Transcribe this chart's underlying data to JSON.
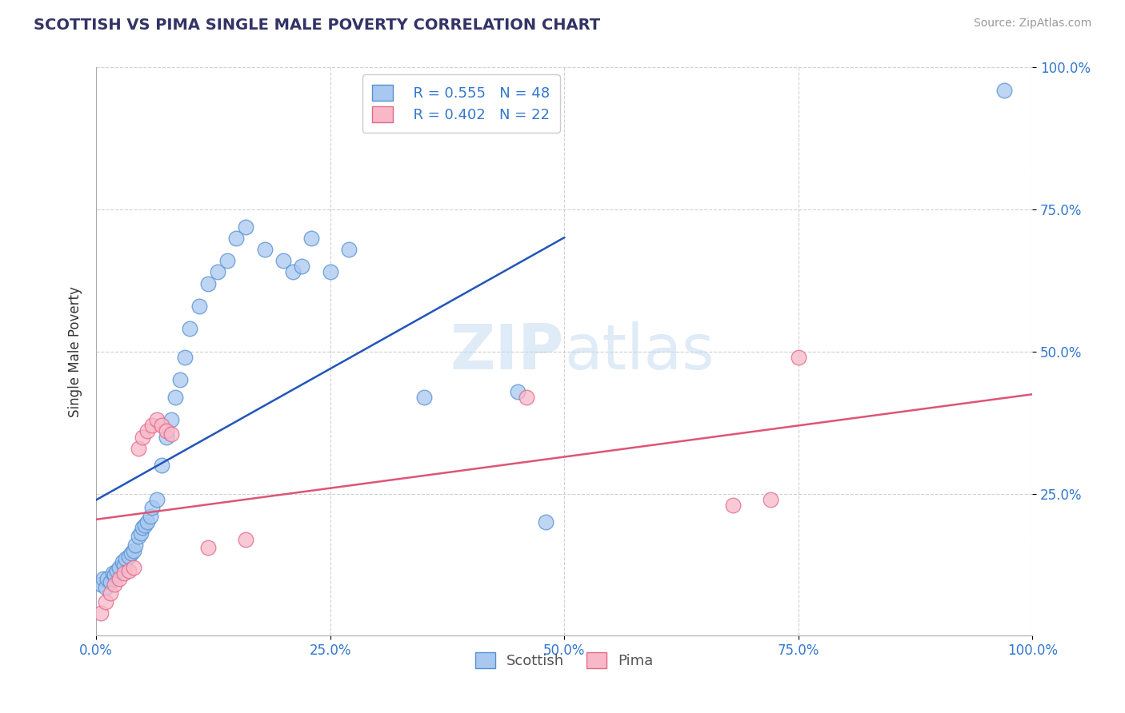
{
  "title": "SCOTTISH VS PIMA SINGLE MALE POVERTY CORRELATION CHART",
  "source": "Source: ZipAtlas.com",
  "ylabel": "Single Male Poverty",
  "watermark": "ZIPatlas",
  "xlim": [
    0.0,
    1.0
  ],
  "ylim": [
    0.0,
    1.0
  ],
  "xticks": [
    0.0,
    0.25,
    0.5,
    0.75,
    1.0
  ],
  "xtick_labels": [
    "0.0%",
    "25.0%",
    "50.0%",
    "75.0%",
    "100.0%"
  ],
  "yticks": [
    0.25,
    0.5,
    0.75,
    1.0
  ],
  "ytick_labels": [
    "25.0%",
    "50.0%",
    "75.0%",
    "100.0%"
  ],
  "scottish_color": "#a8c8f0",
  "scottish_edge": "#5590d0",
  "pima_color": "#f8b8c8",
  "pima_edge": "#e06888",
  "trend_scottish_color": "#2255bb",
  "trend_pima_color": "#dd5577",
  "legend_scottish_R": "R = 0.555",
  "legend_scottish_N": "N = 48",
  "legend_pima_R": "R = 0.402",
  "legend_pima_N": "N = 22",
  "R_color": "#3377cc",
  "scottish_x": [
    0.005,
    0.008,
    0.01,
    0.012,
    0.015,
    0.018,
    0.02,
    0.022,
    0.025,
    0.028,
    0.03,
    0.032,
    0.035,
    0.038,
    0.04,
    0.042,
    0.045,
    0.048,
    0.05,
    0.052,
    0.055,
    0.058,
    0.06,
    0.065,
    0.07,
    0.075,
    0.08,
    0.085,
    0.09,
    0.095,
    0.1,
    0.11,
    0.12,
    0.13,
    0.14,
    0.15,
    0.16,
    0.18,
    0.2,
    0.21,
    0.22,
    0.23,
    0.25,
    0.27,
    0.35,
    0.45,
    0.48,
    0.97
  ],
  "scottish_y": [
    0.09,
    0.1,
    0.085,
    0.1,
    0.095,
    0.11,
    0.108,
    0.115,
    0.12,
    0.13,
    0.125,
    0.135,
    0.14,
    0.145,
    0.15,
    0.16,
    0.175,
    0.18,
    0.19,
    0.195,
    0.2,
    0.21,
    0.225,
    0.24,
    0.3,
    0.35,
    0.38,
    0.42,
    0.45,
    0.49,
    0.54,
    0.58,
    0.62,
    0.64,
    0.66,
    0.7,
    0.72,
    0.68,
    0.66,
    0.64,
    0.65,
    0.7,
    0.64,
    0.68,
    0.42,
    0.43,
    0.2,
    0.96
  ],
  "pima_x": [
    0.005,
    0.01,
    0.015,
    0.02,
    0.025,
    0.03,
    0.035,
    0.04,
    0.045,
    0.05,
    0.055,
    0.06,
    0.065,
    0.07,
    0.075,
    0.08,
    0.12,
    0.16,
    0.46,
    0.68,
    0.72,
    0.75
  ],
  "pima_y": [
    0.04,
    0.06,
    0.075,
    0.09,
    0.1,
    0.11,
    0.115,
    0.12,
    0.33,
    0.35,
    0.36,
    0.37,
    0.38,
    0.37,
    0.36,
    0.355,
    0.155,
    0.17,
    0.42,
    0.23,
    0.24,
    0.49
  ],
  "background_color": "#ffffff",
  "grid_color": "#cccccc",
  "title_color": "#333366",
  "tick_color": "#3377cc",
  "ylabel_color": "#333333"
}
